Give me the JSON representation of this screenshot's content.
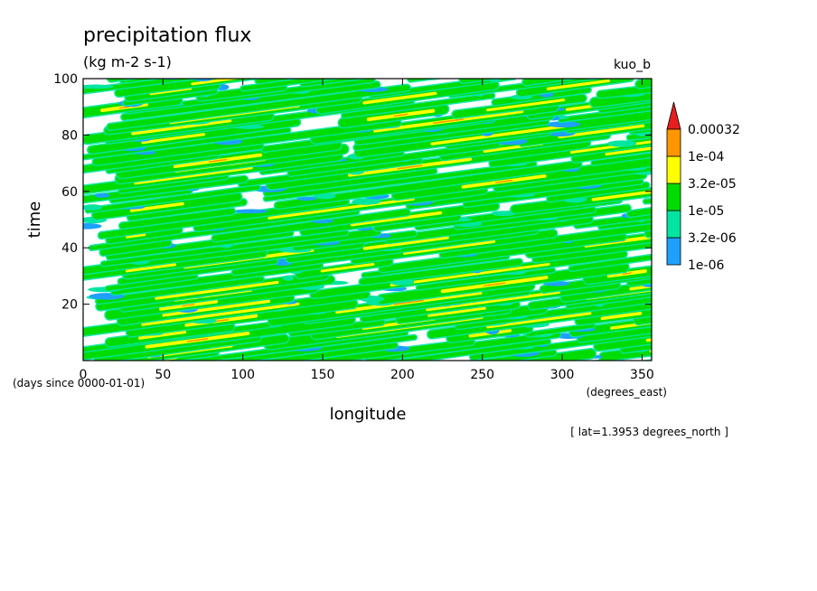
{
  "chart_data": {
    "type": "heatmap",
    "title": "precipitation flux",
    "subtitle": "(kg m-2 s-1)",
    "corner_label": "kuo_b",
    "xlabel": "longitude",
    "xunits": "(degrees_east)",
    "ylabel": "time",
    "yunits": "(days since 0000-01-01)",
    "footnote": "[ lat=1.3953 degrees_north ]",
    "xlim": [
      0,
      356
    ],
    "ylim": [
      0,
      100
    ],
    "x_ticks": [
      0,
      50,
      100,
      150,
      200,
      250,
      300,
      350
    ],
    "y_ticks": [
      20,
      40,
      60,
      80,
      100
    ],
    "grid": false,
    "legend_position": "right",
    "colorbar": {
      "levels": [
        "1e-06",
        "3.2e-06",
        "1e-05",
        "3.2e-05",
        "1e-04",
        "0.00032"
      ],
      "colors": [
        "#1ea0ff",
        "#00e6a0",
        "#00dc00",
        "#ffff00",
        "#ff9600",
        "#e61e1e"
      ],
      "extend": "max"
    },
    "pattern": "eastward-propagating precipitation bands slanting upward to the right (time increases with longitude), repeating roughly every 4 days at a given longitude"
  }
}
